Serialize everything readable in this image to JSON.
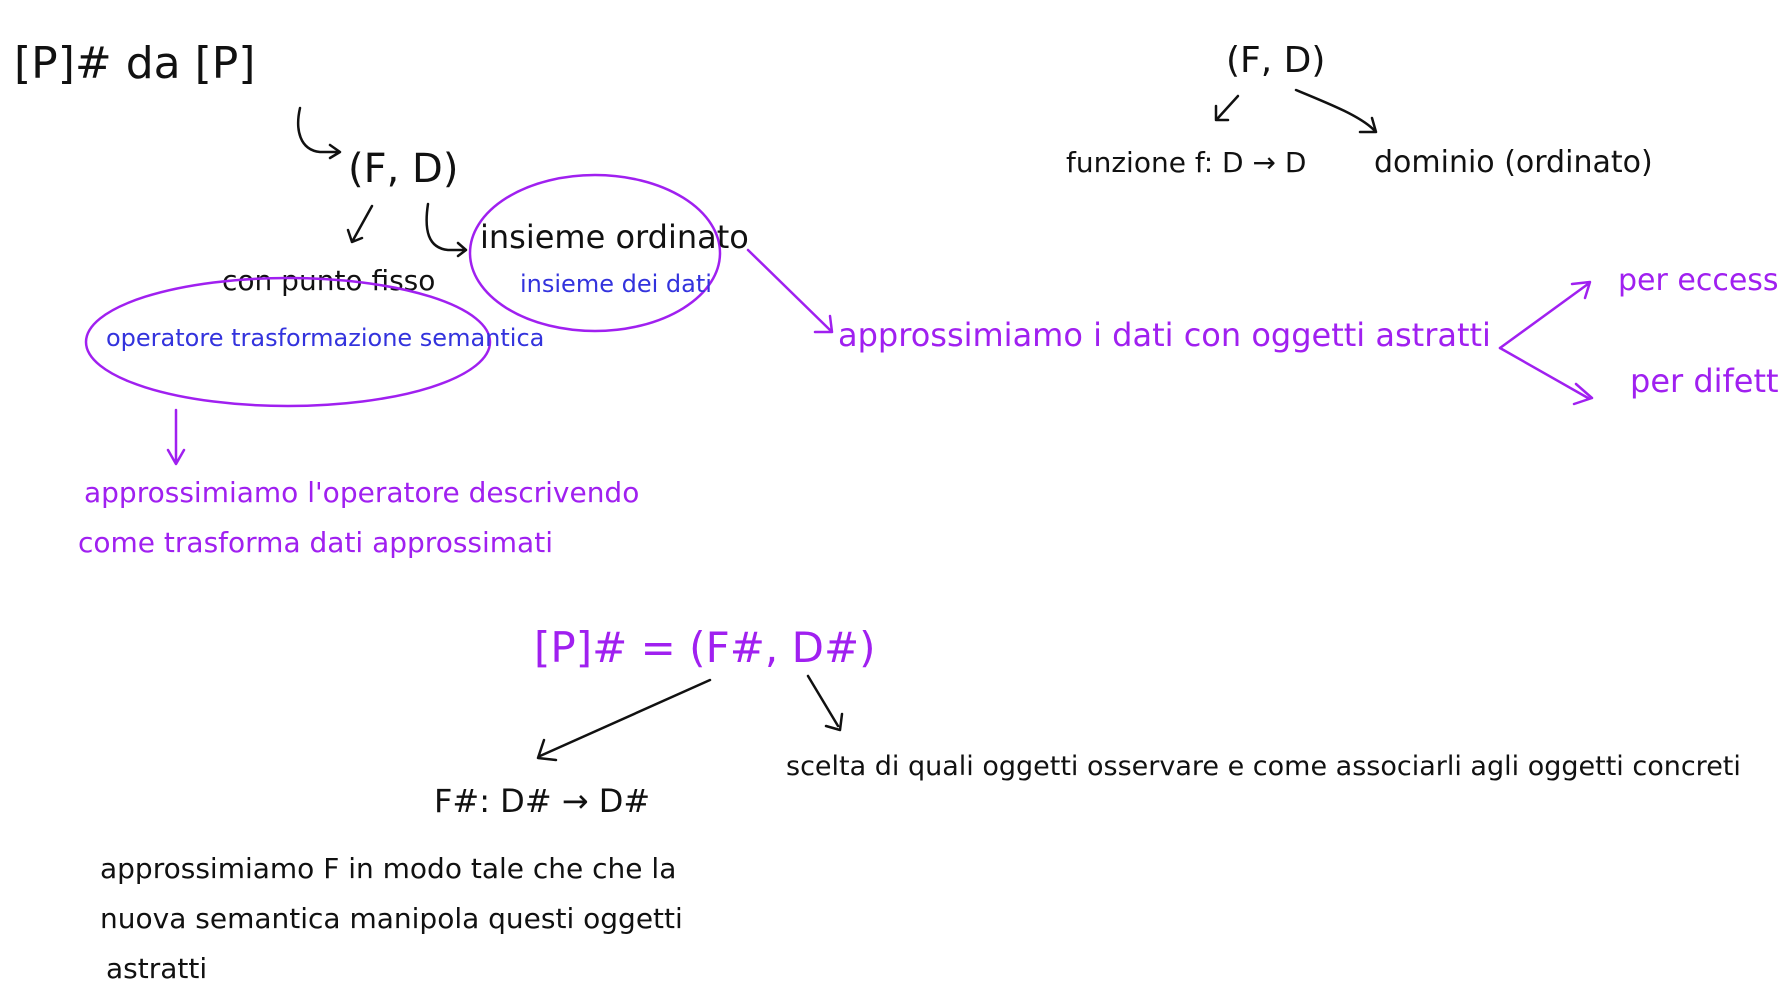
{
  "colors": {
    "black_ink": "#111111",
    "purple_ink": "#a020f0",
    "blue_ink": "#3333dd",
    "background": "#ffffff"
  },
  "notes": {
    "top_left_title": "[P]# da [P]",
    "fd_pair": "(F, D)",
    "fixed_point": "con punto fisso",
    "semantic_operator": "operatore trasformazione semantica",
    "ordered_set": "insieme ordinato",
    "data_set": "insieme dei dati",
    "approx_operator_line1": "approssimiamo l'operatore descrivendo",
    "approx_operator_line2": "come trasforma dati approssimati",
    "approx_data": "approssimiamo i dati con oggetti astratti",
    "by_excess": "per eccesso",
    "by_defect": "per difetto",
    "right_fd_pair": "(F, D)",
    "function_label": "funzione f: D → D",
    "domain_label": "dominio (ordinato)",
    "abstract_semantics": "[P]# = (F#, D#)",
    "abstract_function": "F#: D# → D#",
    "choice_objects": "scelta di quali oggetti osservare e come associarli agli oggetti concreti",
    "approx_f_line1": "approssimiamo F in modo tale che che la",
    "approx_f_line2": "nuova semantica manipola questi oggetti",
    "approx_f_line3": "astratti"
  }
}
